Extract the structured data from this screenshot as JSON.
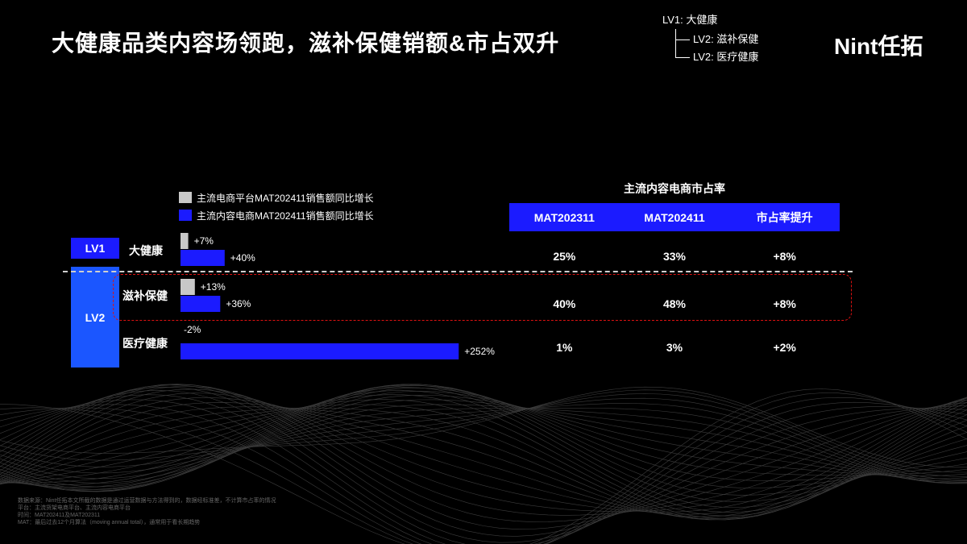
{
  "page": {
    "title": "大健康品类内容场领跑，滋补保健销额&市占双升",
    "logo": "Nint任拓"
  },
  "hierarchy": {
    "lv1": "LV1:  大健康",
    "lv2_a": "LV2:  滋补保健",
    "lv2_b": "LV2:  医疗健康"
  },
  "groups": {
    "lv1": "LV1",
    "lv2": "LV2"
  },
  "market_share": {
    "header": "主流内容电商市占率",
    "columns": [
      "MAT202311",
      "MAT202411",
      "市占率提升"
    ],
    "rows": [
      [
        "25%",
        "33%",
        "+8%"
      ],
      [
        "40%",
        "48%",
        "+8%"
      ],
      [
        "1%",
        "3%",
        "+2%"
      ]
    ]
  },
  "colors": {
    "gray_series": "#c8c8c8",
    "blue_series": "#1b1bff",
    "lv2_box": "#1b56ff",
    "highlight": "#d11"
  },
  "footnote": [
    "数据来源：Nint任拓本文所截的数据是通过运营数据与方法得到的，数据经标准差，不计算市占率的情况",
    "平台：主流货架电商平台、主流内容电商平台",
    "时间：MAT202411及MAT202311",
    "MAT：最后过去12个月算法（moving annual total），通常用于看长期趋势"
  ],
  "chart_data": {
    "type": "bar",
    "orientation": "horizontal",
    "categories": [
      "大健康",
      "滋补保健",
      "医疗健康"
    ],
    "series": [
      {
        "name": "主流电商平台MAT202411销售额同比增长",
        "values": [
          7,
          13,
          -2
        ],
        "labels": [
          "+7%",
          "+13%",
          "-2%"
        ]
      },
      {
        "name": "主流内容电商MAT202411销售额同比增长",
        "values": [
          40,
          36,
          252
        ],
        "labels": [
          "+40%",
          "+36%",
          "+252%"
        ]
      }
    ],
    "title": "",
    "xlabel": "",
    "ylabel": "",
    "legend": "top-left",
    "grid": false,
    "unit": "%"
  }
}
